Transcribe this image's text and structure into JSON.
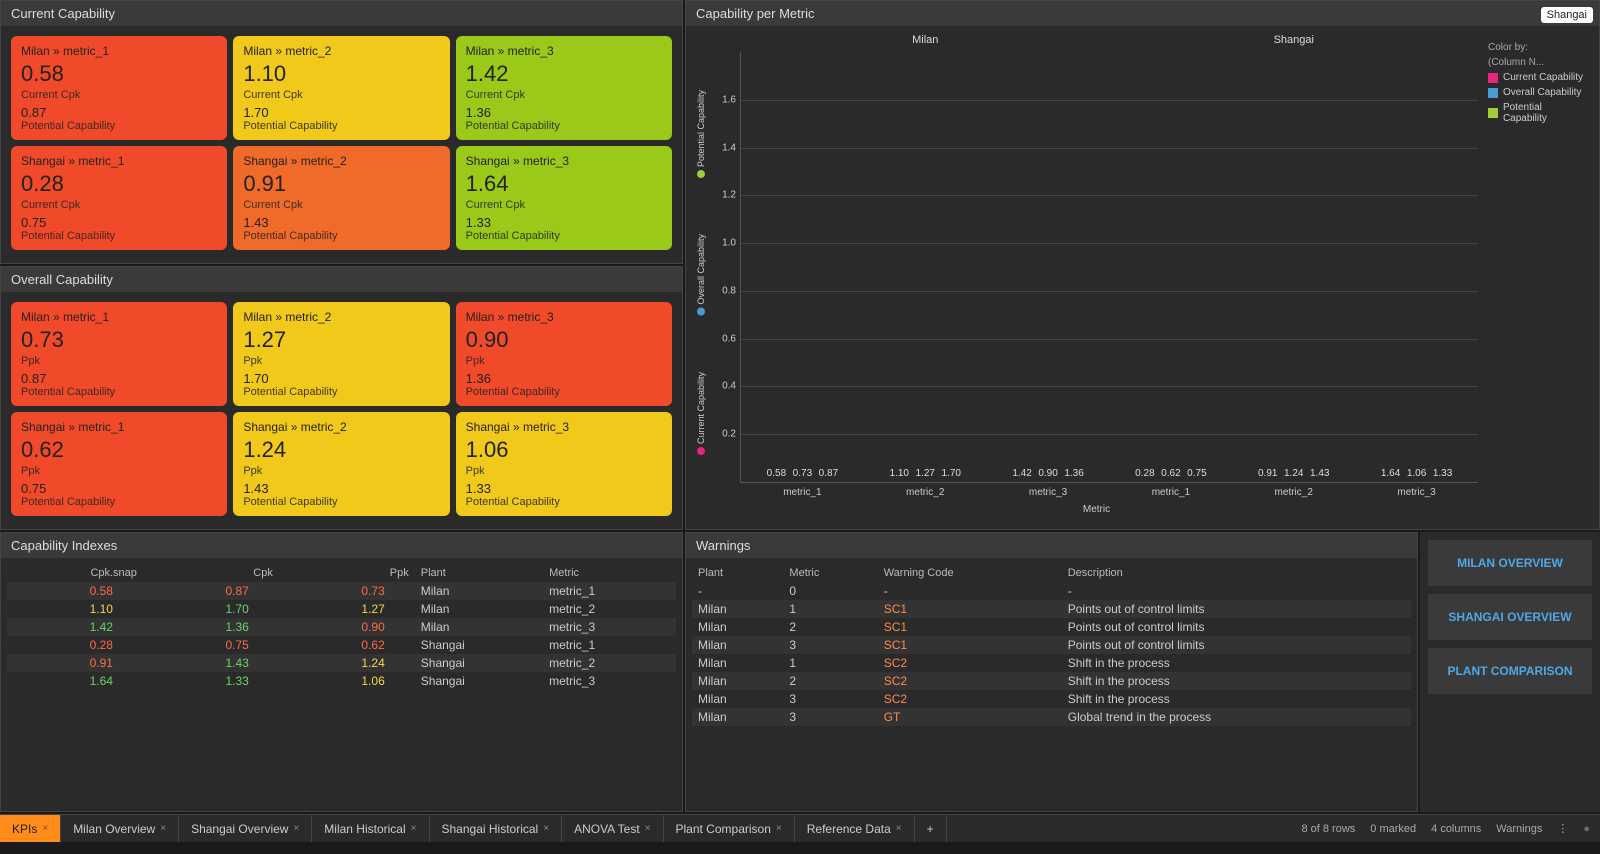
{
  "colors": {
    "red": "#f04a2a",
    "orange_dark": "#f06a2a",
    "yellow": "#f0c91a",
    "green": "#9ac91a",
    "bar_pink": "#e8247f",
    "bar_blue": "#4a9bd4",
    "bar_green": "#a4cc39",
    "warn_orange": "#ff8c4a",
    "val_red": "#ff6a4a",
    "val_yellow": "#f0d84a",
    "val_green": "#6ad66a"
  },
  "current_cap": {
    "title": "Current Capability",
    "cards": [
      {
        "title": "Milan » metric_1",
        "value": "0.58",
        "sub": "Current Cpk",
        "pot": "0.87",
        "potlbl": "Potential Capability",
        "bg": "red"
      },
      {
        "title": "Milan » metric_2",
        "value": "1.10",
        "sub": "Current Cpk",
        "pot": "1.70",
        "potlbl": "Potential Capability",
        "bg": "yellow"
      },
      {
        "title": "Milan » metric_3",
        "value": "1.42",
        "sub": "Current Cpk",
        "pot": "1.36",
        "potlbl": "Potential Capability",
        "bg": "green"
      },
      {
        "title": "Shangai » metric_1",
        "value": "0.28",
        "sub": "Current Cpk",
        "pot": "0.75",
        "potlbl": "Potential Capability",
        "bg": "red"
      },
      {
        "title": "Shangai » metric_2",
        "value": "0.91",
        "sub": "Current Cpk",
        "pot": "1.43",
        "potlbl": "Potential Capability",
        "bg": "orange_dark"
      },
      {
        "title": "Shangai » metric_3",
        "value": "1.64",
        "sub": "Current Cpk",
        "pot": "1.33",
        "potlbl": "Potential Capability",
        "bg": "green"
      }
    ]
  },
  "overall_cap": {
    "title": "Overall Capability",
    "cards": [
      {
        "title": "Milan » metric_1",
        "value": "0.73",
        "sub": "Ppk",
        "pot": "0.87",
        "potlbl": "Potential Capability",
        "bg": "red"
      },
      {
        "title": "Milan » metric_2",
        "value": "1.27",
        "sub": "Ppk",
        "pot": "1.70",
        "potlbl": "Potential Capability",
        "bg": "yellow"
      },
      {
        "title": "Milan » metric_3",
        "value": "0.90",
        "sub": "Ppk",
        "pot": "1.36",
        "potlbl": "Potential Capability",
        "bg": "red"
      },
      {
        "title": "Shangai » metric_1",
        "value": "0.62",
        "sub": "Ppk",
        "pot": "0.75",
        "potlbl": "Potential Capability",
        "bg": "red"
      },
      {
        "title": "Shangai » metric_2",
        "value": "1.24",
        "sub": "Ppk",
        "pot": "1.43",
        "potlbl": "Potential Capability",
        "bg": "yellow"
      },
      {
        "title": "Shangai » metric_3",
        "value": "1.06",
        "sub": "Ppk",
        "pot": "1.33",
        "potlbl": "Potential Capability",
        "bg": "yellow"
      }
    ]
  },
  "chart": {
    "title": "Capability per Metric",
    "tooltip": "Shangai",
    "ymax": 1.8,
    "yticks": [
      0.2,
      0.4,
      0.6,
      0.8,
      1.0,
      1.2,
      1.4,
      1.6
    ],
    "xaxis": "Metric",
    "facets": [
      {
        "name": "Milan",
        "groups": [
          {
            "x": "metric_1",
            "bars": [
              {
                "v": 0.58,
                "c": "bar_pink"
              },
              {
                "v": 0.73,
                "c": "bar_blue"
              },
              {
                "v": 0.87,
                "c": "bar_green"
              }
            ]
          },
          {
            "x": "metric_2",
            "bars": [
              {
                "v": 1.1,
                "c": "bar_pink"
              },
              {
                "v": 1.27,
                "c": "bar_blue"
              },
              {
                "v": 1.7,
                "c": "bar_green"
              }
            ]
          },
          {
            "x": "metric_3",
            "bars": [
              {
                "v": 1.42,
                "c": "bar_pink"
              },
              {
                "v": 0.9,
                "c": "bar_blue"
              },
              {
                "v": 1.36,
                "c": "bar_green"
              }
            ]
          }
        ]
      },
      {
        "name": "Shangai",
        "groups": [
          {
            "x": "metric_1",
            "bars": [
              {
                "v": 0.28,
                "c": "bar_pink"
              },
              {
                "v": 0.62,
                "c": "bar_blue"
              },
              {
                "v": 0.75,
                "c": "bar_green"
              }
            ]
          },
          {
            "x": "metric_2",
            "bars": [
              {
                "v": 0.91,
                "c": "bar_pink"
              },
              {
                "v": 1.24,
                "c": "bar_blue"
              },
              {
                "v": 1.43,
                "c": "bar_green"
              }
            ]
          },
          {
            "x": "metric_3",
            "bars": [
              {
                "v": 1.64,
                "c": "bar_pink"
              },
              {
                "v": 1.06,
                "c": "bar_blue"
              },
              {
                "v": 1.33,
                "c": "bar_green"
              }
            ]
          }
        ]
      }
    ],
    "vlabels": [
      {
        "text": "Potential Capability",
        "c": "bar_green"
      },
      {
        "text": "Overall Capability",
        "c": "bar_blue"
      },
      {
        "text": "Current Capability",
        "c": "bar_pink"
      }
    ],
    "legend_hdr1": "Color by:",
    "legend_hdr2": "(Column N...",
    "legend": [
      {
        "text": "Current Capability",
        "c": "bar_pink"
      },
      {
        "text": "Overall Capability",
        "c": "bar_blue"
      },
      {
        "text": "Potential Capability",
        "c": "bar_green"
      }
    ]
  },
  "indexes": {
    "title": "Capability Indexes",
    "headers": [
      "Cpk.snap",
      "Cpk",
      "Ppk",
      "Plant",
      "Metric"
    ],
    "rows": [
      {
        "cpksnap": {
          "v": "0.58",
          "c": "val_red"
        },
        "cpk": {
          "v": "0.87",
          "c": "val_red"
        },
        "ppk": {
          "v": "0.73",
          "c": "val_red"
        },
        "plant": "Milan",
        "metric": "metric_1"
      },
      {
        "cpksnap": {
          "v": "1.10",
          "c": "val_yellow"
        },
        "cpk": {
          "v": "1.70",
          "c": "val_green"
        },
        "ppk": {
          "v": "1.27",
          "c": "val_yellow"
        },
        "plant": "Milan",
        "metric": "metric_2"
      },
      {
        "cpksnap": {
          "v": "1.42",
          "c": "val_green"
        },
        "cpk": {
          "v": "1.36",
          "c": "val_green"
        },
        "ppk": {
          "v": "0.90",
          "c": "val_red"
        },
        "plant": "Milan",
        "metric": "metric_3"
      },
      {
        "cpksnap": {
          "v": "0.28",
          "c": "val_red"
        },
        "cpk": {
          "v": "0.75",
          "c": "val_red"
        },
        "ppk": {
          "v": "0.62",
          "c": "val_red"
        },
        "plant": "Shangai",
        "metric": "metric_1"
      },
      {
        "cpksnap": {
          "v": "0.91",
          "c": "val_red"
        },
        "cpk": {
          "v": "1.43",
          "c": "val_green"
        },
        "ppk": {
          "v": "1.24",
          "c": "val_yellow"
        },
        "plant": "Shangai",
        "metric": "metric_2"
      },
      {
        "cpksnap": {
          "v": "1.64",
          "c": "val_green"
        },
        "cpk": {
          "v": "1.33",
          "c": "val_green"
        },
        "ppk": {
          "v": "1.06",
          "c": "val_yellow"
        },
        "plant": "Shangai",
        "metric": "metric_3"
      }
    ]
  },
  "warnings": {
    "title": "Warnings",
    "headers": [
      "Plant",
      "Metric",
      "Warning Code",
      "Description"
    ],
    "rows": [
      {
        "plant": "-",
        "metric": "0",
        "code": "-",
        "codec": null,
        "desc": "-"
      },
      {
        "plant": "Milan",
        "metric": "1",
        "code": "SC1",
        "codec": "warn_orange",
        "desc": "Points out of control limits"
      },
      {
        "plant": "Milan",
        "metric": "2",
        "code": "SC1",
        "codec": "warn_orange",
        "desc": "Points out of control limits"
      },
      {
        "plant": "Milan",
        "metric": "3",
        "code": "SC1",
        "codec": "warn_orange",
        "desc": "Points out of control limits"
      },
      {
        "plant": "Milan",
        "metric": "1",
        "code": "SC2",
        "codec": "warn_orange",
        "desc": "Shift in the process"
      },
      {
        "plant": "Milan",
        "metric": "2",
        "code": "SC2",
        "codec": "warn_orange",
        "desc": "Shift in the process"
      },
      {
        "plant": "Milan",
        "metric": "3",
        "code": "SC2",
        "codec": "warn_orange",
        "desc": "Shift in the process"
      },
      {
        "plant": "Milan",
        "metric": "3",
        "code": "GT",
        "codec": "warn_orange",
        "desc": "Global trend in the process"
      }
    ]
  },
  "nav_buttons": [
    "MILAN OVERVIEW",
    "SHANGAI OVERVIEW",
    "PLANT COMPARISON"
  ],
  "tabs": [
    {
      "label": "KPIs",
      "active": true
    },
    {
      "label": "Milan Overview",
      "active": false
    },
    {
      "label": "Shangai Overview",
      "active": false
    },
    {
      "label": "Milan Historical",
      "active": false
    },
    {
      "label": "Shangai Historical",
      "active": false
    },
    {
      "label": "ANOVA Test",
      "active": false
    },
    {
      "label": "Plant Comparison",
      "active": false
    },
    {
      "label": "Reference Data",
      "active": false
    }
  ],
  "status": {
    "rows": "8 of 8 rows",
    "marked": "0 marked",
    "cols": "4 columns",
    "src": "Warnings"
  }
}
